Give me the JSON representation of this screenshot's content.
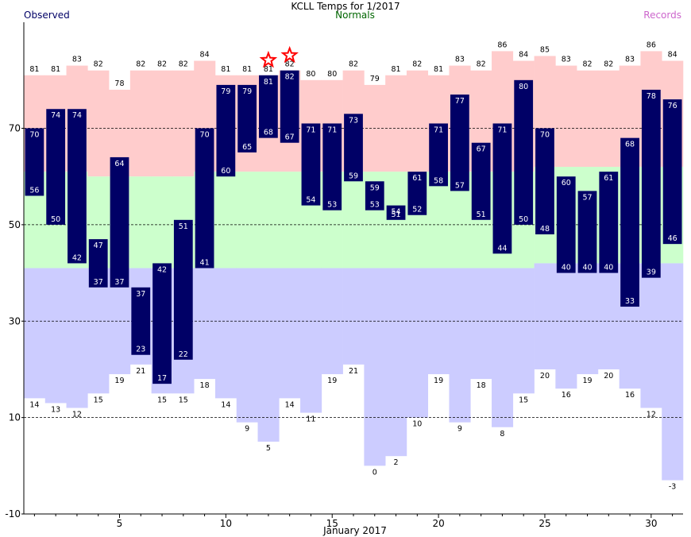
{
  "chart_data": {
    "type": "bar",
    "title": "KCLL Temps for  1/2017",
    "xlabel": "January 2017",
    "legend": {
      "observed": "Observed",
      "normals": "Normals",
      "records": "Records"
    },
    "colors": {
      "observed": "#000066",
      "normals_legend": "#006600",
      "records_legend": "#cc66cc",
      "record_high_band": "#ffcccc",
      "normal_band": "#ccffcc",
      "record_low_band": "#ccccff",
      "star": "#ff0000",
      "grid": "#000000"
    },
    "ylim": [
      -10,
      92
    ],
    "yticks": [
      -10,
      10,
      30,
      50,
      70
    ],
    "xticks": [
      5,
      10,
      15,
      20,
      25,
      30
    ],
    "grid": "dashed horizontal",
    "days": [
      1,
      2,
      3,
      4,
      5,
      6,
      7,
      8,
      9,
      10,
      11,
      12,
      13,
      14,
      15,
      16,
      17,
      18,
      19,
      20,
      21,
      22,
      23,
      24,
      25,
      26,
      27,
      28,
      29,
      30,
      31
    ],
    "observed_high": [
      70,
      74,
      74,
      47,
      64,
      37,
      42,
      51,
      70,
      79,
      79,
      81,
      82,
      71,
      71,
      73,
      59,
      54,
      61,
      71,
      77,
      67,
      71,
      80,
      70,
      60,
      57,
      61,
      68,
      78,
      76
    ],
    "observed_low": [
      56,
      50,
      42,
      37,
      37,
      23,
      17,
      22,
      41,
      60,
      65,
      68,
      67,
      54,
      53,
      59,
      53,
      51,
      52,
      58,
      57,
      51,
      44,
      50,
      48,
      40,
      40,
      40,
      33,
      39,
      46
    ],
    "record_high": [
      81,
      81,
      83,
      82,
      78,
      82,
      82,
      82,
      84,
      81,
      81,
      81,
      82,
      80,
      80,
      82,
      79,
      81,
      82,
      81,
      83,
      82,
      86,
      84,
      85,
      83,
      82,
      82,
      83,
      86,
      84
    ],
    "record_low": [
      14,
      13,
      12,
      15,
      19,
      21,
      15,
      15,
      18,
      14,
      9,
      5,
      14,
      11,
      19,
      21,
      0,
      2,
      10,
      19,
      9,
      18,
      8,
      15,
      20,
      16,
      19,
      20,
      16,
      12,
      -3
    ],
    "normal_high": [
      61,
      61,
      61,
      60,
      60,
      60,
      60,
      60,
      61,
      61,
      61,
      61,
      61,
      61,
      61,
      61,
      61,
      61,
      61,
      61,
      61,
      61,
      61,
      61,
      62,
      62,
      62,
      62,
      62,
      62,
      62
    ],
    "normal_low": [
      41,
      41,
      41,
      41,
      41,
      41,
      41,
      41,
      41,
      41,
      41,
      41,
      41,
      41,
      41,
      41,
      41,
      41,
      41,
      41,
      41,
      41,
      41,
      41,
      42,
      42,
      42,
      42,
      42,
      42,
      42
    ],
    "record_set_days": [
      12,
      13
    ]
  }
}
